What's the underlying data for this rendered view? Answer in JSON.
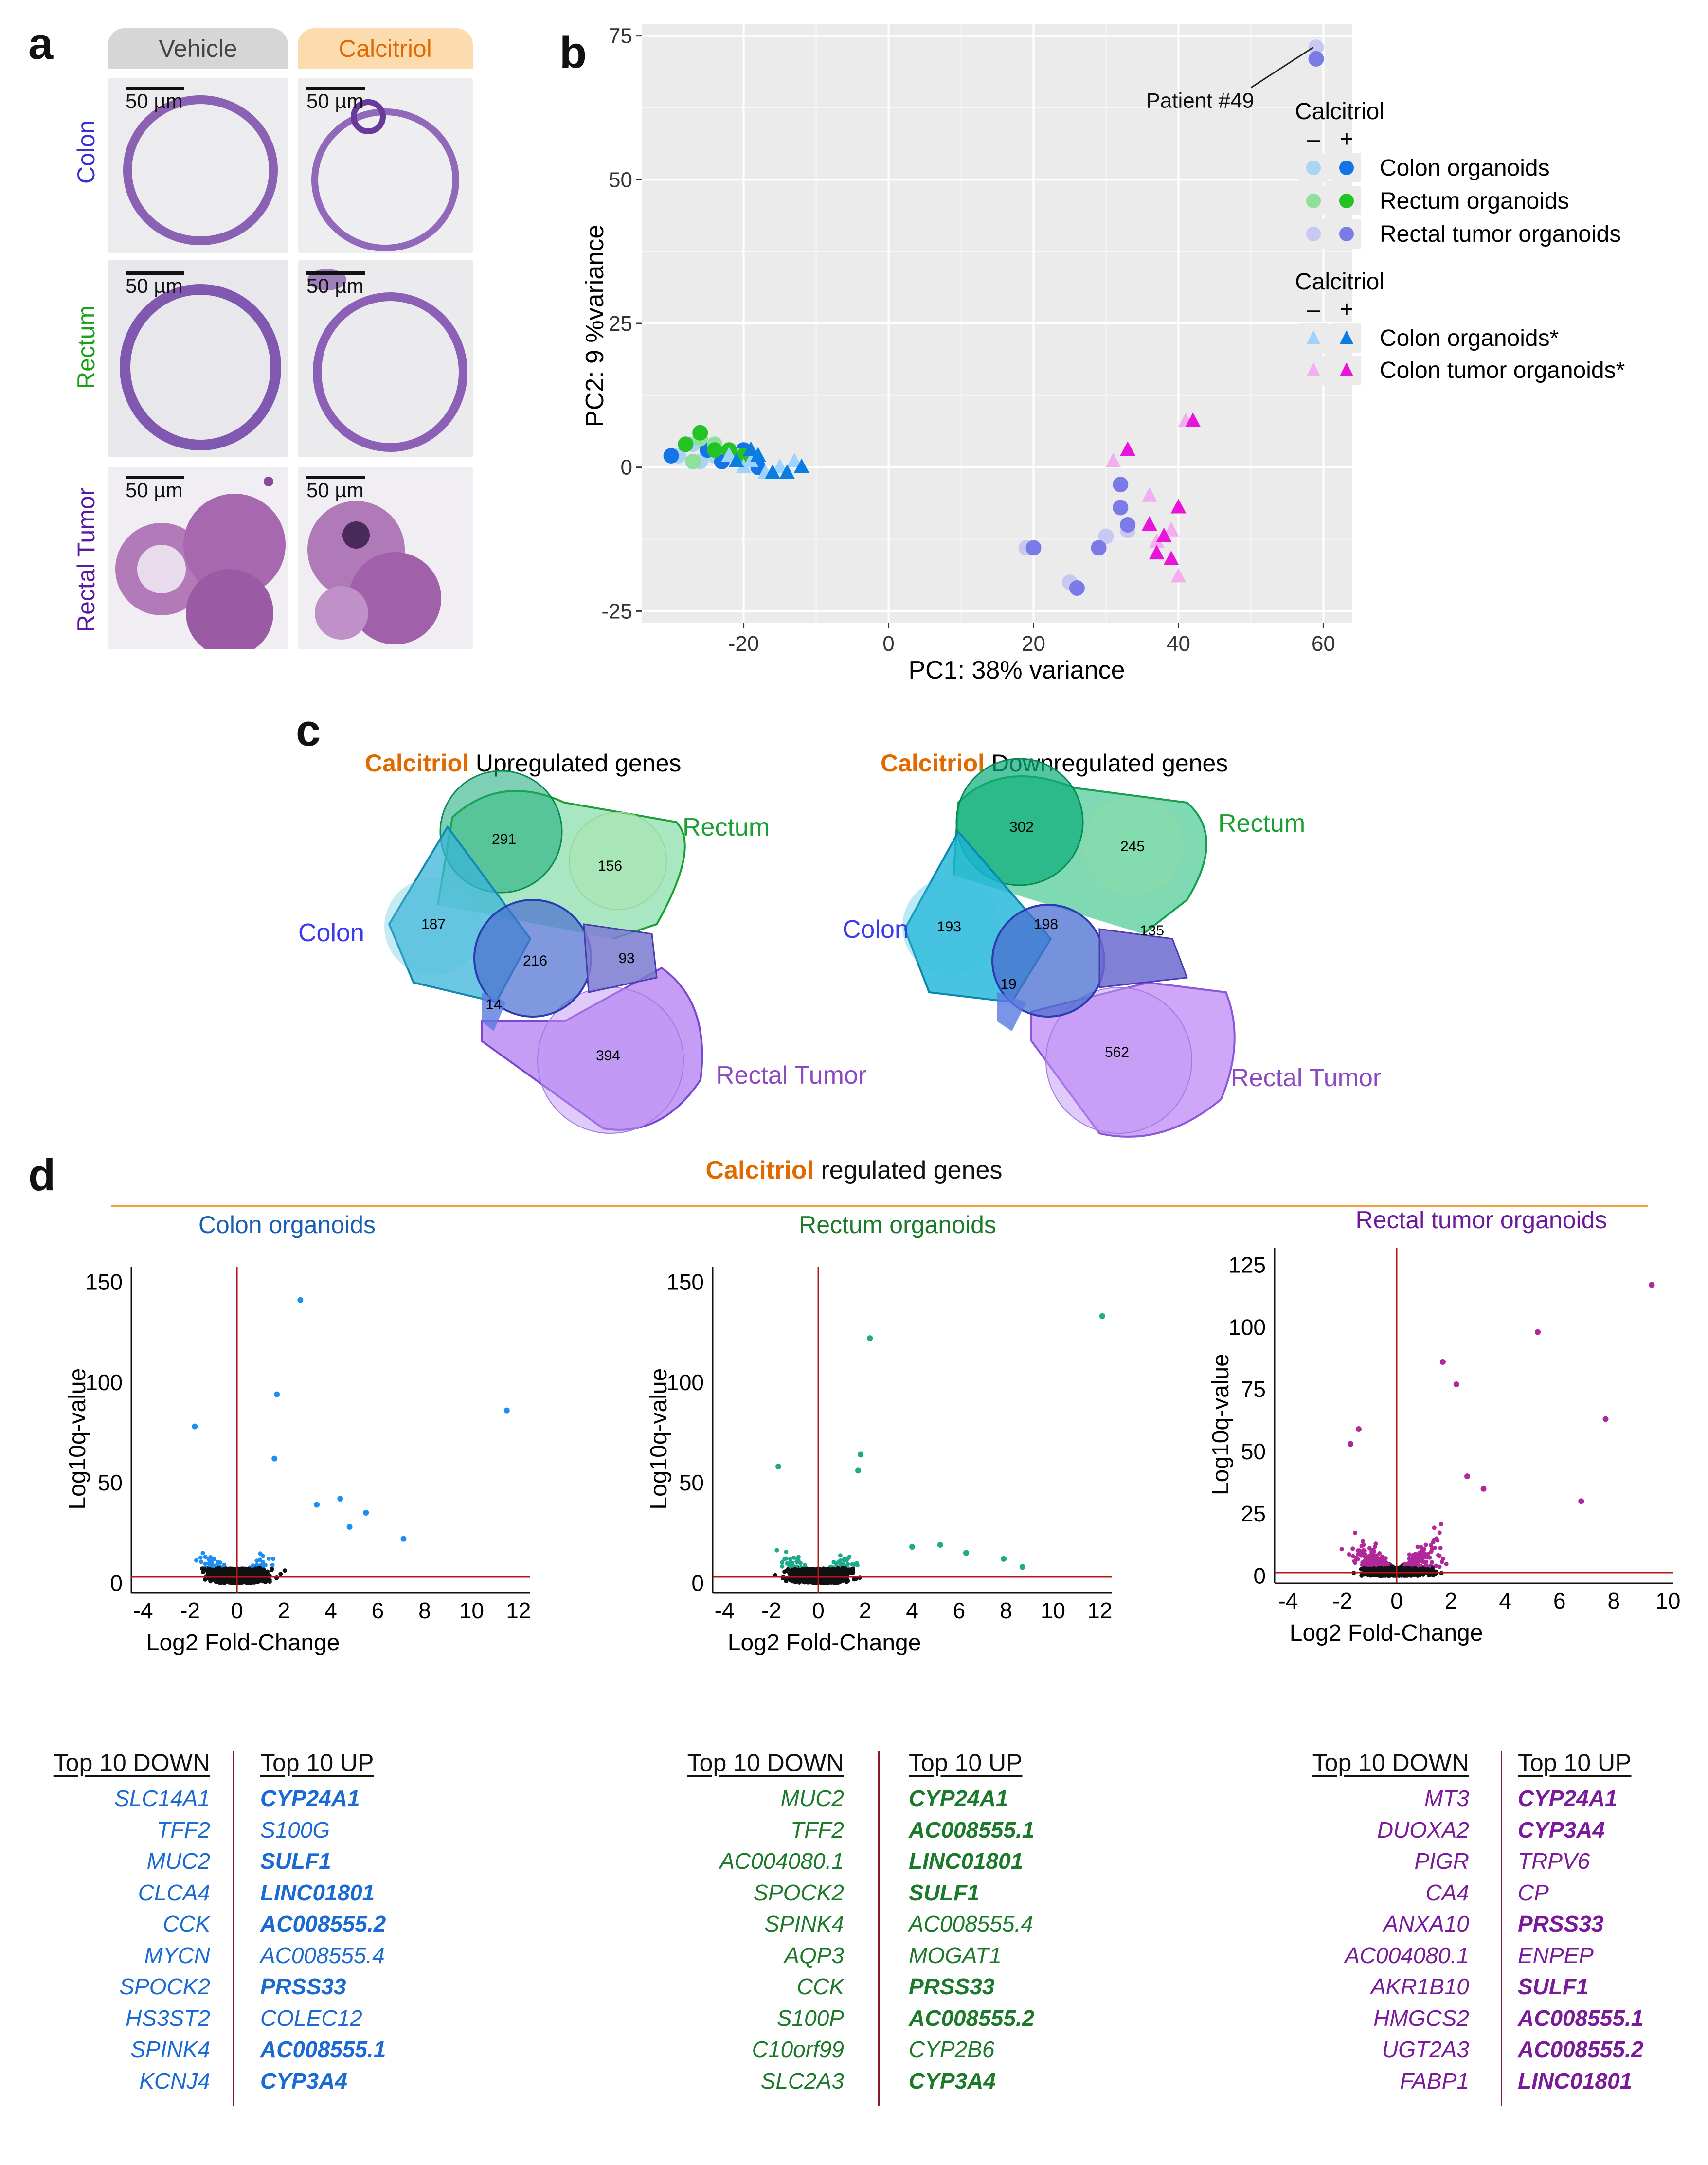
{
  "panel_a": {
    "letter": "a",
    "headers": {
      "vehicle": "Vehicle",
      "calcitriol": "Calcitriol"
    },
    "rows": [
      {
        "label": "Colon",
        "color": "#3a2fd0"
      },
      {
        "label": "Rectum",
        "color": "#1aa01a"
      },
      {
        "label": "Rectal Tumor",
        "color": "#5a1aa0"
      }
    ],
    "scale_bar": "50 µm"
  },
  "panel_b": {
    "letter": "b",
    "annotation": "Patient #49",
    "legend1": {
      "title": "Calcitriol",
      "minus": "–",
      "plus": "+",
      "items": [
        "Colon organoids",
        "Rectum organoids",
        "Rectal tumor organoids"
      ]
    },
    "legend2": {
      "title": "Calcitriol",
      "minus": "–",
      "plus": "+",
      "items": [
        "Colon organoids*",
        "Colon tumor organoids*"
      ]
    }
  },
  "panel_c": {
    "letter": "c",
    "up": {
      "title_accent": "Calcitriol",
      "title_rest": " Upregulated genes",
      "labels": {
        "rectum": "Rectum",
        "colon": "Colon",
        "tumor": "Rectal Tumor"
      },
      "counts": {
        "colon_rectum": "291",
        "rectum_only": "156",
        "colon_only": "187",
        "all": "216",
        "rectum_tumor": "93",
        "colon_tumor": "14",
        "tumor_only": "394"
      }
    },
    "down": {
      "title_accent": "Calcitriol",
      "title_rest": " Downregulated genes",
      "labels": {
        "rectum": "Rectum",
        "colon": "Colon",
        "tumor": "Rectal Tumor"
      },
      "counts": {
        "colon_rectum": "302",
        "rectum_only": "245",
        "colon_only": "193",
        "all": "198",
        "rectum_tumor": "135",
        "colon_tumor": "19",
        "tumor_only": "562"
      }
    }
  },
  "panel_d": {
    "letter": "d",
    "title_accent": "Calcitriol",
    "title_rest": " regulated genes",
    "volcanos": [
      {
        "title": "Colon organoids",
        "color": "#1a5fb4"
      },
      {
        "title": "Rectum organoids",
        "color": "#1a7a2a"
      },
      {
        "title": "Rectal tumor organoids",
        "color": "#6a1a9a"
      }
    ],
    "gene_tables": [
      {
        "down_header": "Top 10 DOWN",
        "up_header": "Top 10 UP",
        "down": [
          "SLC14A1",
          "TFF2",
          "MUC2",
          "CLCA4",
          "CCK",
          "MYCN",
          "SPOCK2",
          "HS3ST2",
          "SPINK4",
          "KCNJ4"
        ],
        "up": [
          "CYP24A1",
          "S100G",
          "SULF1",
          "LINC01801",
          "AC008555.2",
          "AC008555.4",
          "PRSS33",
          "COLEC12",
          "AC008555.1",
          "CYP3A4"
        ]
      },
      {
        "down_header": "Top 10 DOWN",
        "up_header": "Top 10 UP",
        "down": [
          "MUC2",
          "TFF2",
          "AC004080.1",
          "SPOCK2",
          "SPINK4",
          "AQP3",
          "CCK",
          "S100P",
          "C10orf99",
          "SLC2A3"
        ],
        "up": [
          "CYP24A1",
          "AC008555.1",
          "LINC01801",
          "SULF1",
          "AC008555.4",
          "MOGAT1",
          "PRSS33",
          "AC008555.2",
          "CYP2B6",
          "CYP3A4"
        ]
      },
      {
        "down_header": "Top 10 DOWN",
        "up_header": "Top 10 UP",
        "down": [
          "MT3",
          "DUOXA2",
          "PIGR",
          "CA4",
          "ANXA10",
          "AC004080.1",
          "AKR1B10",
          "HMGCS2",
          "UGT2A3",
          "FABP1"
        ],
        "up": [
          "CYP24A1",
          "CYP3A4",
          "TRPV6",
          "CP",
          "PRSS33",
          "ENPEP",
          "SULF1",
          "AC008555.1",
          "AC008555.2",
          "LINC01801"
        ]
      }
    ]
  },
  "chart_data": [
    {
      "type": "scatter",
      "id": "pca",
      "xlabel": "PC1: 38% variance",
      "ylabel": "PC2: 9 %variance",
      "xlim": [
        -34,
        64
      ],
      "ylim": [
        -27,
        77
      ],
      "xticks": [
        -20,
        0,
        20,
        40,
        60
      ],
      "yticks": [
        -25,
        0,
        25,
        50,
        75
      ],
      "series": [
        {
          "name": "Colon organoids -",
          "marker": "circle",
          "color": "#a9d4f2",
          "points": [
            [
              -27,
              4
            ],
            [
              -24,
              2
            ],
            [
              -29,
              2
            ],
            [
              -22,
              3
            ],
            [
              -26,
              1
            ]
          ]
        },
        {
          "name": "Colon organoids +",
          "marker": "circle",
          "color": "#1473e6",
          "points": [
            [
              -30,
              2
            ],
            [
              -28,
              4
            ],
            [
              -25,
              3
            ],
            [
              -23,
              1
            ],
            [
              -20,
              3
            ],
            [
              -18,
              0
            ]
          ]
        },
        {
          "name": "Rectum organoids -",
          "marker": "circle",
          "color": "#8fe09a",
          "points": [
            [
              -26,
              5
            ],
            [
              -24,
              4
            ],
            [
              -21,
              2
            ],
            [
              -27,
              1
            ]
          ]
        },
        {
          "name": "Rectum organoids +",
          "marker": "circle",
          "color": "#22c322",
          "points": [
            [
              -26,
              6
            ],
            [
              -28,
              4
            ],
            [
              -24,
              3
            ],
            [
              -22,
              3
            ],
            [
              -20,
              2
            ]
          ]
        },
        {
          "name": "Rectal tumor organoids -",
          "marker": "circle",
          "color": "#c8c8f2",
          "points": [
            [
              19,
              -14
            ],
            [
              25,
              -20
            ],
            [
              30,
              -12
            ],
            [
              32,
              -7
            ],
            [
              33,
              -11
            ],
            [
              59,
              73
            ]
          ]
        },
        {
          "name": "Rectal tumor organoids +",
          "marker": "circle",
          "color": "#7b7be8",
          "points": [
            [
              20,
              -14
            ],
            [
              26,
              -21
            ],
            [
              29,
              -14
            ],
            [
              32,
              -3
            ],
            [
              32,
              -7
            ],
            [
              33,
              -10
            ],
            [
              59,
              71
            ]
          ]
        },
        {
          "name": "Colon organoids* -",
          "marker": "triangle",
          "color": "#9ed3ff",
          "points": [
            [
              -22,
              2
            ],
            [
              -19,
              1
            ],
            [
              -15,
              0
            ],
            [
              -17,
              -1
            ],
            [
              -20,
              0
            ],
            [
              -13,
              1
            ]
          ]
        },
        {
          "name": "Colon organoids* +",
          "marker": "triangle",
          "color": "#0a7de3",
          "points": [
            [
              -21,
              1
            ],
            [
              -18,
              2
            ],
            [
              -16,
              -1
            ],
            [
              -14,
              -1
            ],
            [
              -19,
              3
            ],
            [
              -12,
              0
            ]
          ]
        },
        {
          "name": "Colon tumor organoids* -",
          "marker": "triangle",
          "color": "#f4aef0",
          "points": [
            [
              31,
              1
            ],
            [
              36,
              -5
            ],
            [
              39,
              -11
            ],
            [
              41,
              8
            ],
            [
              37,
              -13
            ],
            [
              40,
              -19
            ]
          ]
        },
        {
          "name": "Colon tumor organoids* +",
          "marker": "triangle",
          "color": "#e914d9",
          "points": [
            [
              33,
              3
            ],
            [
              36,
              -10
            ],
            [
              38,
              -12
            ],
            [
              42,
              8
            ],
            [
              39,
              -16
            ],
            [
              37,
              -15
            ],
            [
              40,
              -7
            ]
          ]
        }
      ]
    },
    {
      "type": "venn",
      "id": "venn-up",
      "title": "Calcitriol Upregulated genes",
      "sets": [
        "Colon",
        "Rectum",
        "Rectal Tumor"
      ],
      "regions": {
        "Colon only": 187,
        "Rectum only": 156,
        "Rectal Tumor only": 394,
        "Colon&Rectum": 291,
        "Rectum&Rectal Tumor": 93,
        "Colon&Rectal Tumor": 14,
        "All three": 216
      }
    },
    {
      "type": "venn",
      "id": "venn-down",
      "title": "Calcitriol Downregulated genes",
      "sets": [
        "Colon",
        "Rectum",
        "Rectal Tumor"
      ],
      "regions": {
        "Colon only": 193,
        "Rectum only": 245,
        "Rectal Tumor only": 562,
        "Colon&Rectum": 302,
        "Rectum&Rectal Tumor": 135,
        "Colon&Rectal Tumor": 19,
        "All three": 198
      }
    },
    {
      "type": "scatter",
      "id": "volcano-colon",
      "title": "Colon organoids",
      "xlabel": "Log2 Fold-Change",
      "ylabel": "Log10q-value",
      "xlim": [
        -4.5,
        12.5
      ],
      "ylim": [
        -5,
        155
      ],
      "xticks": [
        -4,
        -2,
        0,
        2,
        4,
        6,
        8,
        10,
        12
      ],
      "yticks": [
        0,
        50,
        100,
        150
      ],
      "color": "#1f8ef1",
      "highlight": [
        [
          2.7,
          141
        ],
        [
          11.5,
          86
        ],
        [
          -1.8,
          78
        ],
        [
          1.7,
          94
        ],
        [
          1.6,
          62
        ],
        [
          4.8,
          28
        ],
        [
          7.1,
          22
        ],
        [
          3.4,
          39
        ],
        [
          5.5,
          35
        ],
        [
          4.4,
          42
        ]
      ]
    },
    {
      "type": "scatter",
      "id": "volcano-rectum",
      "title": "Rectum organoids",
      "xlabel": "Log2 Fold-Change",
      "ylabel": "Log10q-value",
      "xlim": [
        -4.5,
        12.5
      ],
      "ylim": [
        -5,
        155
      ],
      "xticks": [
        -4,
        -2,
        0,
        2,
        4,
        6,
        8,
        10,
        12
      ],
      "yticks": [
        0,
        50,
        100,
        150
      ],
      "color": "#1faa8a",
      "highlight": [
        [
          12.1,
          133
        ],
        [
          2.2,
          122
        ],
        [
          -1.7,
          58
        ],
        [
          1.8,
          64
        ],
        [
          1.7,
          56
        ],
        [
          5.2,
          19
        ],
        [
          7.9,
          12
        ],
        [
          6.3,
          15
        ],
        [
          8.7,
          8
        ],
        [
          4.0,
          18
        ]
      ]
    },
    {
      "type": "scatter",
      "id": "volcano-tumor",
      "title": "Rectal tumor organoids",
      "xlabel": "Log2 Fold-Change",
      "ylabel": "Log10q-value",
      "xlim": [
        -4.5,
        10.2
      ],
      "ylim": [
        -3,
        130
      ],
      "xticks": [
        -4,
        -2,
        0,
        2,
        4,
        6,
        8,
        10
      ],
      "yticks": [
        0,
        25,
        50,
        75,
        100,
        125
      ],
      "color": "#b0289a",
      "highlight": [
        [
          9.4,
          117
        ],
        [
          5.2,
          98
        ],
        [
          7.7,
          63
        ],
        [
          6.8,
          30
        ],
        [
          1.7,
          86
        ],
        [
          2.2,
          77
        ],
        [
          -1.4,
          59
        ],
        [
          -1.7,
          53
        ],
        [
          3.2,
          35
        ],
        [
          2.6,
          40
        ]
      ]
    }
  ]
}
